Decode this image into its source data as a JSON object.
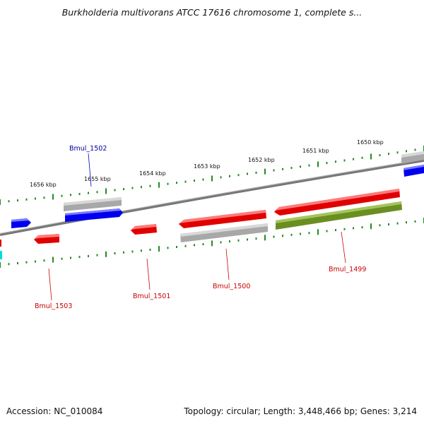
{
  "title": "Burkholderia multivorans ATCC 17616 chromosome 1, complete s...",
  "footer": {
    "accession": "Accession: NC_010084",
    "summary": "Topology: circular; Length: 3,448,466 bp; Genes: 3,214"
  },
  "colors": {
    "backbone": "#808080",
    "tick": "#228b22",
    "red_gene": "#e00000",
    "blue_gene": "#0000ee",
    "grey_gene": "#a8a8a8",
    "olive_gene": "#6b8e23",
    "cyan_gene": "#00dddd",
    "label_red": "#cc0000",
    "label_blue": "#000099"
  },
  "scale_labels": [
    "1656 kbp",
    "1655 kbp",
    "1654 kbp",
    "1653 kbp",
    "1652 kbp",
    "1651 kbp",
    "1650 kbp"
  ],
  "gene_labels": [
    "Bmul_1502",
    "Bmul_1503",
    "Bmul_1501",
    "Bmul_1500",
    "Bmul_1499"
  ]
}
